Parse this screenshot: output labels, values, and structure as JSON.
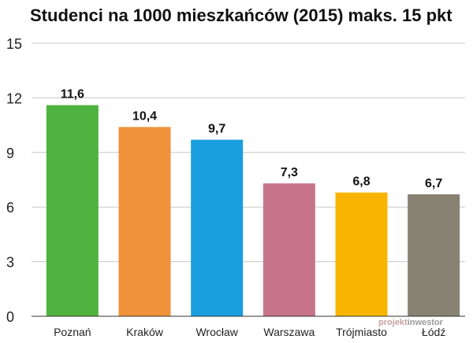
{
  "chart_data": {
    "type": "bar",
    "title": "Studenci na 1000 mieszkańców (2015) maks. 15 pkt",
    "categories": [
      "Poznań",
      "Kraków",
      "Wrocław",
      "Warszawa",
      "Trójmiasto",
      "Łódź"
    ],
    "values": [
      11.6,
      10.4,
      9.7,
      7.3,
      6.8,
      6.7
    ],
    "data_labels": [
      "11,6",
      "10,4",
      "9,7",
      "7,3",
      "6,8",
      "6,7"
    ],
    "colors": [
      "#4fb33f",
      "#f0923a",
      "#1a9ee0",
      "#c7748a",
      "#f8b400",
      "#878272"
    ],
    "ylim": [
      0,
      15
    ],
    "yticks": [
      0,
      3,
      6,
      9,
      12,
      15
    ],
    "xlabel": "",
    "ylabel": "",
    "grid": true
  },
  "watermark": {
    "part1": "projekt",
    "part2": "inwestor",
    "color1": "#c9a0a0",
    "color2": "#9a9a9a"
  }
}
